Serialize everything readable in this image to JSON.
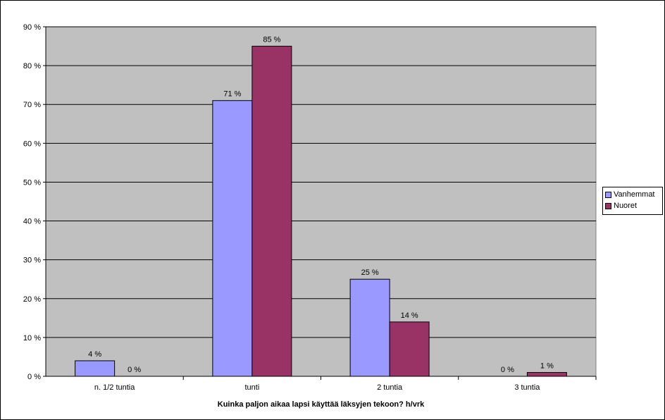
{
  "chart_data": {
    "type": "bar",
    "title": "",
    "xlabel": "Kuinka paljon aikaa lapsi käyttää läksyjen tekoon? h/vrk",
    "ylabel": "",
    "categories": [
      "n. 1/2 tuntia",
      "tunti",
      "2 tuntia",
      "3 tuntia"
    ],
    "series": [
      {
        "name": "Vanhemmat",
        "values": [
          4,
          71,
          25,
          0
        ],
        "color": "#9999ff",
        "labels": [
          "4 %",
          "71 %",
          "25 %",
          "0 %"
        ]
      },
      {
        "name": "Nuoret",
        "values": [
          0,
          85,
          14,
          1
        ],
        "color": "#993366",
        "labels": [
          "0 %",
          "85 %",
          "14 %",
          "1 %"
        ]
      }
    ],
    "ylim": [
      0,
      90
    ],
    "yticks": [
      0,
      10,
      20,
      30,
      40,
      50,
      60,
      70,
      80,
      90
    ],
    "ytick_labels": [
      "0 %",
      "10 %",
      "20 %",
      "30 %",
      "40 %",
      "50 %",
      "60 %",
      "70 %",
      "80 %",
      "90 %"
    ],
    "grid": true,
    "plot_background": "#c0c0c0",
    "legend_position": "right"
  }
}
